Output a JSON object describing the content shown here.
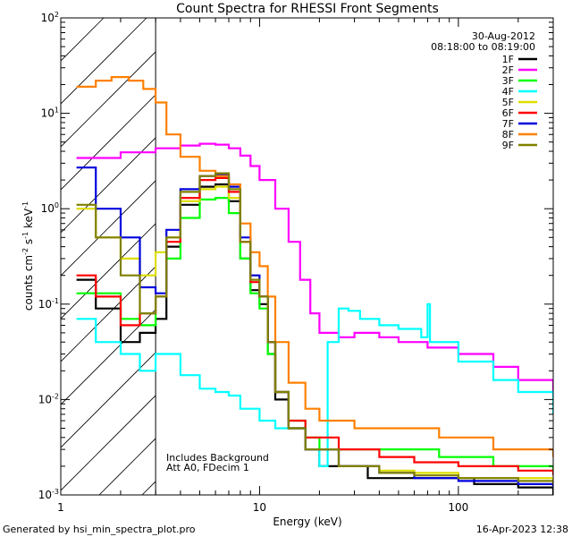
{
  "chart_data": {
    "type": "line",
    "title": "Count Spectra for RHESSI Front Segments",
    "xlabel": "Energy (keV)",
    "ylabel_parts": [
      "counts cm",
      "-2",
      " s",
      "-1",
      " keV",
      "-1"
    ],
    "xscale": "log",
    "yscale": "log",
    "xlim": [
      1.0,
      300.0
    ],
    "ylim": [
      0.001,
      100.0
    ],
    "x_tick_labels": [
      {
        "value": 1,
        "text": "1"
      },
      {
        "value": 10,
        "text": "10"
      },
      {
        "value": 100,
        "text": "100"
      }
    ],
    "y_tick_labels": [
      {
        "value": 0.001,
        "base": "10",
        "exp": "-3"
      },
      {
        "value": 0.01,
        "base": "10",
        "exp": "-2"
      },
      {
        "value": 0.1,
        "base": "10",
        "exp": "-1"
      },
      {
        "value": 1,
        "base": "10",
        "exp": "0"
      },
      {
        "value": 10,
        "base": "10",
        "exp": "1"
      },
      {
        "value": 100,
        "base": "10",
        "exp": "2"
      }
    ],
    "hatched_region_keV": [
      1.0,
      3.0
    ],
    "legend_header": [
      "30-Aug-2012",
      "08:18:00 to 08:19:00"
    ],
    "annotations": [
      "Includes Background",
      "Att A0, FDecim 1"
    ],
    "series": [
      {
        "name": "1F",
        "color": "#000000",
        "points": [
          [
            1.2,
            0.18
          ],
          [
            1.5,
            0.09
          ],
          [
            2.0,
            0.04
          ],
          [
            2.5,
            0.05
          ],
          [
            3.0,
            0.07
          ],
          [
            3.4,
            0.4
          ],
          [
            4.0,
            1.1
          ],
          [
            5.0,
            1.7
          ],
          [
            6.0,
            1.8
          ],
          [
            7.0,
            1.2
          ],
          [
            8.0,
            0.3
          ],
          [
            9.0,
            0.14
          ],
          [
            10.0,
            0.1
          ],
          [
            11.0,
            0.03
          ],
          [
            12.0,
            0.01
          ],
          [
            14.0,
            0.005
          ],
          [
            17.0,
            0.003
          ],
          [
            20.0,
            0.002
          ],
          [
            25.0,
            0.002
          ],
          [
            35.0,
            0.0015
          ],
          [
            50.0,
            0.0015
          ],
          [
            80.0,
            0.0015
          ],
          [
            120.0,
            0.0013
          ],
          [
            200.0,
            0.0012
          ],
          [
            300.0,
            0.001
          ]
        ]
      },
      {
        "name": "2F",
        "color": "#ff00ff",
        "points": [
          [
            1.2,
            3.4
          ],
          [
            2.0,
            3.9
          ],
          [
            3.0,
            4.3
          ],
          [
            4.0,
            4.6
          ],
          [
            5.0,
            4.8
          ],
          [
            6.0,
            4.7
          ],
          [
            7.0,
            4.3
          ],
          [
            8.0,
            3.6
          ],
          [
            9.0,
            2.8
          ],
          [
            10.0,
            2.0
          ],
          [
            12.0,
            1.0
          ],
          [
            14.0,
            0.45
          ],
          [
            16.0,
            0.18
          ],
          [
            18.0,
            0.08
          ],
          [
            20.0,
            0.05
          ],
          [
            25.0,
            0.045
          ],
          [
            30.0,
            0.05
          ],
          [
            40.0,
            0.045
          ],
          [
            50.0,
            0.04
          ],
          [
            70.0,
            0.035
          ],
          [
            100.0,
            0.03
          ],
          [
            150.0,
            0.022
          ],
          [
            200.0,
            0.016
          ],
          [
            300.0,
            0.011
          ]
        ]
      },
      {
        "name": "3F",
        "color": "#00ff00",
        "points": [
          [
            1.2,
            0.13
          ],
          [
            1.5,
            0.13
          ],
          [
            2.0,
            0.07
          ],
          [
            2.5,
            0.06
          ],
          [
            3.0,
            0.12
          ],
          [
            3.4,
            0.3
          ],
          [
            4.0,
            0.8
          ],
          [
            5.0,
            1.25
          ],
          [
            6.0,
            1.3
          ],
          [
            7.0,
            0.9
          ],
          [
            8.0,
            0.3
          ],
          [
            9.0,
            0.13
          ],
          [
            10.0,
            0.09
          ],
          [
            11.0,
            0.03
          ],
          [
            12.0,
            0.012
          ],
          [
            14.0,
            0.006
          ],
          [
            17.0,
            0.004
          ],
          [
            20.0,
            0.003
          ],
          [
            30.0,
            0.003
          ],
          [
            50.0,
            0.003
          ],
          [
            80.0,
            0.0025
          ],
          [
            150.0,
            0.002
          ],
          [
            250.0,
            0.002
          ],
          [
            300.0,
            0.0018
          ]
        ]
      },
      {
        "name": "4F",
        "color": "#00ffff",
        "points": [
          [
            1.2,
            0.07
          ],
          [
            1.5,
            0.04
          ],
          [
            2.0,
            0.03
          ],
          [
            2.5,
            0.02
          ],
          [
            3.0,
            0.03
          ],
          [
            4.0,
            0.018
          ],
          [
            5.0,
            0.013
          ],
          [
            6.0,
            0.012
          ],
          [
            7.0,
            0.011
          ],
          [
            8.0,
            0.008
          ],
          [
            10.0,
            0.006
          ],
          [
            12.0,
            0.005
          ],
          [
            14.0,
            0.005
          ],
          [
            17.0,
            0.003
          ],
          [
            20.0,
            0.002
          ],
          [
            22.0,
            0.04
          ],
          [
            25.0,
            0.09
          ],
          [
            28.0,
            0.085
          ],
          [
            32.0,
            0.07
          ],
          [
            40.0,
            0.06
          ],
          [
            50.0,
            0.055
          ],
          [
            65.0,
            0.045
          ],
          [
            70.0,
            0.1
          ],
          [
            72.0,
            0.04
          ],
          [
            100.0,
            0.025
          ],
          [
            150.0,
            0.016
          ],
          [
            200.0,
            0.012
          ],
          [
            300.0,
            0.007
          ]
        ]
      },
      {
        "name": "5F",
        "color": "#dddd00",
        "points": [
          [
            1.2,
            1.0
          ],
          [
            1.5,
            0.5
          ],
          [
            2.0,
            0.3
          ],
          [
            2.5,
            0.2
          ],
          [
            3.0,
            0.35
          ],
          [
            3.4,
            0.5
          ],
          [
            4.0,
            1.2
          ],
          [
            5.0,
            1.6
          ],
          [
            6.0,
            1.7
          ],
          [
            7.0,
            1.3
          ],
          [
            8.0,
            0.45
          ],
          [
            9.0,
            0.2
          ],
          [
            10.0,
            0.12
          ],
          [
            11.0,
            0.04
          ],
          [
            12.0,
            0.012
          ],
          [
            14.0,
            0.005
          ],
          [
            17.0,
            0.003
          ],
          [
            25.0,
            0.002
          ],
          [
            40.0,
            0.0018
          ],
          [
            60.0,
            0.0017
          ],
          [
            100.0,
            0.0015
          ],
          [
            200.0,
            0.0015
          ],
          [
            300.0,
            0.0014
          ]
        ]
      },
      {
        "name": "6F",
        "color": "#ff0000",
        "points": [
          [
            1.2,
            0.2
          ],
          [
            1.5,
            0.12
          ],
          [
            2.0,
            0.06
          ],
          [
            2.5,
            0.08
          ],
          [
            3.0,
            0.12
          ],
          [
            3.4,
            0.45
          ],
          [
            4.0,
            1.3
          ],
          [
            5.0,
            2.0
          ],
          [
            6.0,
            2.1
          ],
          [
            7.0,
            1.5
          ],
          [
            8.0,
            0.45
          ],
          [
            9.0,
            0.17
          ],
          [
            10.0,
            0.12
          ],
          [
            11.0,
            0.04
          ],
          [
            12.0,
            0.012
          ],
          [
            14.0,
            0.006
          ],
          [
            17.0,
            0.004
          ],
          [
            25.0,
            0.003
          ],
          [
            40.0,
            0.0025
          ],
          [
            60.0,
            0.0022
          ],
          [
            100.0,
            0.002
          ],
          [
            200.0,
            0.0018
          ],
          [
            300.0,
            0.0016
          ]
        ]
      },
      {
        "name": "7F",
        "color": "#0000dd",
        "points": [
          [
            1.2,
            2.7
          ],
          [
            1.5,
            1.0
          ],
          [
            2.0,
            0.5
          ],
          [
            2.5,
            0.15
          ],
          [
            3.0,
            0.13
          ],
          [
            3.4,
            0.6
          ],
          [
            4.0,
            1.6
          ],
          [
            5.0,
            2.2
          ],
          [
            6.0,
            2.3
          ],
          [
            7.0,
            1.7
          ],
          [
            8.0,
            0.5
          ],
          [
            9.0,
            0.2
          ],
          [
            10.0,
            0.12
          ],
          [
            11.0,
            0.04
          ],
          [
            12.0,
            0.012
          ],
          [
            14.0,
            0.005
          ],
          [
            17.0,
            0.003
          ],
          [
            25.0,
            0.002
          ],
          [
            40.0,
            0.0017
          ],
          [
            60.0,
            0.0015
          ],
          [
            100.0,
            0.0014
          ],
          [
            200.0,
            0.0013
          ],
          [
            300.0,
            0.0012
          ]
        ]
      },
      {
        "name": "8F",
        "color": "#ff8000",
        "points": [
          [
            1.2,
            19.0
          ],
          [
            1.5,
            22.0
          ],
          [
            1.8,
            24.0
          ],
          [
            2.2,
            22.0
          ],
          [
            2.6,
            18.0
          ],
          [
            3.0,
            13.0
          ],
          [
            3.4,
            6.0
          ],
          [
            4.0,
            3.5
          ],
          [
            5.0,
            2.5
          ],
          [
            6.0,
            2.2
          ],
          [
            7.0,
            1.8
          ],
          [
            8.0,
            0.7
          ],
          [
            9.0,
            0.35
          ],
          [
            10.0,
            0.25
          ],
          [
            11.0,
            0.12
          ],
          [
            12.0,
            0.04
          ],
          [
            14.0,
            0.015
          ],
          [
            17.0,
            0.008
          ],
          [
            20.0,
            0.006
          ],
          [
            30.0,
            0.005
          ],
          [
            50.0,
            0.005
          ],
          [
            80.0,
            0.004
          ],
          [
            150.0,
            0.003
          ],
          [
            300.0,
            0.0025
          ]
        ]
      },
      {
        "name": "9F",
        "color": "#808000",
        "points": [
          [
            1.2,
            1.1
          ],
          [
            1.5,
            0.5
          ],
          [
            2.0,
            0.2
          ],
          [
            2.5,
            0.08
          ],
          [
            3.0,
            0.12
          ],
          [
            3.4,
            0.5
          ],
          [
            4.0,
            1.5
          ],
          [
            5.0,
            2.2
          ],
          [
            6.0,
            2.35
          ],
          [
            7.0,
            1.6
          ],
          [
            8.0,
            0.45
          ],
          [
            9.0,
            0.18
          ],
          [
            10.0,
            0.12
          ],
          [
            11.0,
            0.04
          ],
          [
            12.0,
            0.012
          ],
          [
            14.0,
            0.005
          ],
          [
            17.0,
            0.003
          ],
          [
            25.0,
            0.002
          ],
          [
            40.0,
            0.0017
          ],
          [
            60.0,
            0.0016
          ],
          [
            100.0,
            0.0015
          ],
          [
            200.0,
            0.0014
          ],
          [
            300.0,
            0.0013
          ]
        ]
      }
    ]
  },
  "footer": {
    "generated_by": "Generated by hsi_min_spectra_plot.pro",
    "timestamp": "16-Apr-2023 12:38"
  }
}
